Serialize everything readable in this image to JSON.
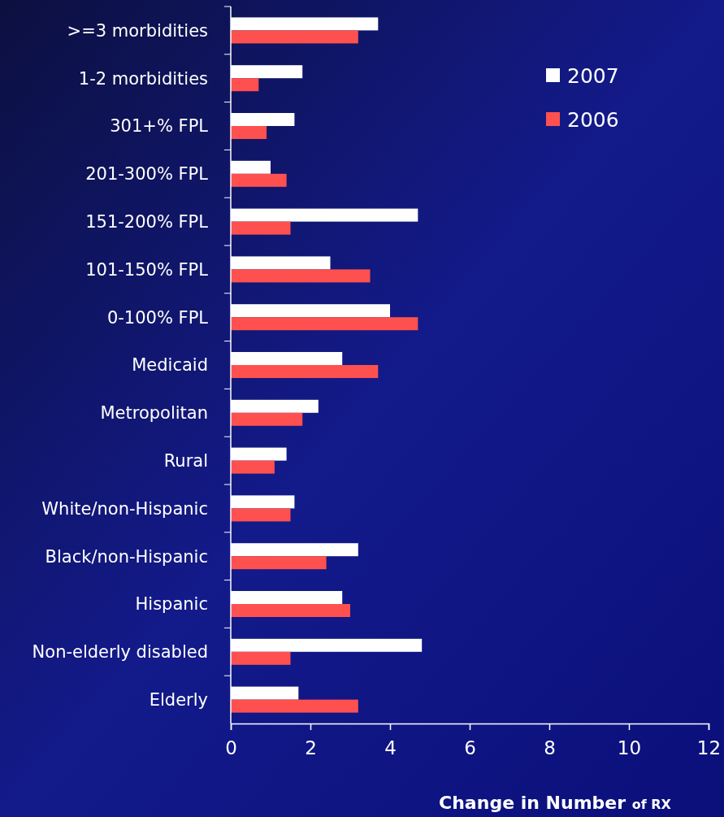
{
  "chart_data": {
    "type": "bar",
    "orientation": "horizontal",
    "xlabel": "Change in Number $_{of RX}$",
    "categories": [
      ">=3 morbidities",
      "1-2 morbidities",
      "301+% FPL",
      "201-300% FPL",
      "151-200% FPL",
      "101-150% FPL ",
      "0-100% FPL",
      "Medicaid",
      "Metropolitan",
      "Rural",
      "White/non-Hispanic",
      "Black/non-Hispanic",
      "Hispanic",
      "Non-elderly disabled",
      "Elderly"
    ],
    "series": [
      {
        "name": "2007",
        "color": "#ffffff",
        "values": [
          3.7,
          1.8,
          1.6,
          1.0,
          4.7,
          2.5,
          4.0,
          2.8,
          2.2,
          1.4,
          1.6,
          3.2,
          2.8,
          4.8,
          1.7
        ]
      },
      {
        "name": "2006",
        "color": "#ff5050",
        "values": [
          3.2,
          0.7,
          0.9,
          1.4,
          1.5,
          3.5,
          4.7,
          3.7,
          1.8,
          1.1,
          1.5,
          2.4,
          3.0,
          1.5,
          3.2
        ]
      }
    ],
    "xlim": [
      0,
      12
    ],
    "xticks": [
      0,
      2,
      4,
      6,
      8,
      10,
      12
    ],
    "legend": "top right"
  }
}
